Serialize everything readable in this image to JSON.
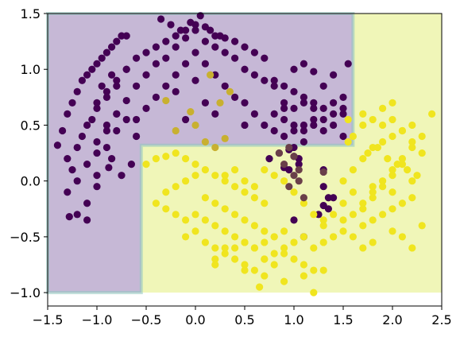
{
  "chart_data": {
    "type": "scatter",
    "title": "",
    "xlabel": "",
    "ylabel": "",
    "xlim": [
      -1.5,
      2.5
    ],
    "ylim": [
      -1.12,
      1.5
    ],
    "grid": false,
    "legend": "none",
    "xticks": [
      -1.5,
      -1.0,
      -0.5,
      0.0,
      0.5,
      1.0,
      1.5,
      2.0,
      2.5
    ],
    "xtick_labels": [
      "−1.5",
      "−1.0",
      "−0.5",
      "0.0",
      "0.5",
      "1.0",
      "1.5",
      "2.0",
      "2.5"
    ],
    "yticks": [
      -1.0,
      -0.5,
      0.0,
      0.5,
      1.0,
      1.5
    ],
    "ytick_labels": [
      "−1.0",
      "−0.5",
      "0.0",
      "0.5",
      "1.0",
      "1.5"
    ],
    "decision_regions": {
      "extent": {
        "x": [
          -1.5,
          2.5
        ],
        "y": [
          -1.0,
          1.5
        ]
      },
      "colors": {
        "class_0": "#c6b8d6",
        "class_1": "#f0f6b8"
      },
      "class_0_polygon": [
        [
          -1.5,
          1.5
        ],
        [
          1.6,
          1.5
        ],
        [
          1.6,
          0.32
        ],
        [
          -0.55,
          0.32
        ],
        [
          -0.55,
          -1.0
        ],
        [
          -1.5,
          -1.0
        ]
      ]
    },
    "series": [
      {
        "color": "#440154",
        "x": [
          -1.4,
          -1.35,
          -1.3,
          -1.25,
          -1.2,
          -1.15,
          -1.1,
          -1.05,
          -1.0,
          -0.95,
          -0.9,
          -0.85,
          -0.8,
          -0.75,
          -0.7,
          -1.3,
          -1.2,
          -1.1,
          -1.0,
          -0.9,
          -0.8,
          -0.7,
          -1.25,
          -1.15,
          -1.05,
          -0.95,
          -0.85,
          -1.3,
          -1.2,
          -1.1,
          -1.0,
          -0.9,
          -0.8,
          -1.2,
          -1.1,
          -1.0,
          -0.9,
          -1.1,
          -1.0,
          -1.28,
          -0.88,
          -1.0,
          -0.9,
          -0.8,
          -0.7,
          -0.6,
          -0.5,
          -0.4,
          -0.3,
          -0.2,
          -0.1,
          0.0,
          0.1,
          0.2,
          0.3,
          0.4,
          0.5,
          0.6,
          0.7,
          -0.8,
          -0.7,
          -0.6,
          -0.5,
          -0.4,
          -0.3,
          -0.2,
          -0.1,
          0.0,
          0.1,
          0.2,
          0.3,
          0.4,
          0.5,
          0.6,
          0.7,
          0.8,
          -0.6,
          -0.5,
          -0.4,
          -0.3,
          -0.2,
          -0.1,
          0.0,
          0.1,
          0.2,
          0.3,
          0.4,
          0.5,
          -0.35,
          -0.25,
          -0.15,
          -0.05,
          0.05,
          0.15,
          0.25,
          -0.2,
          0.0,
          0.2,
          -0.1,
          0.1,
          0.8,
          0.9,
          1.0,
          1.1,
          1.2,
          1.3,
          1.4,
          1.5,
          0.8,
          0.9,
          1.0,
          1.1,
          1.2,
          1.3,
          1.4,
          1.5,
          1.55,
          0.9,
          1.0,
          1.1,
          1.2,
          1.3,
          1.4,
          1.5,
          0.9,
          1.0,
          1.1,
          1.2,
          1.3,
          1.4,
          1.0,
          1.1,
          1.2,
          0.7,
          0.8,
          0.9,
          1.0,
          1.1,
          0.6,
          0.5,
          -0.9,
          -0.8,
          -0.7,
          -0.6,
          -1.0,
          -0.85,
          -0.65,
          -0.75,
          0.85,
          0.95,
          1.0,
          1.05,
          0.75,
          0.9,
          0.95,
          1.05,
          1.3,
          1.3,
          1.35,
          1.4,
          1.0,
          1.1,
          1.3,
          1.25,
          1.35,
          1.5
        ],
        "y": [
          0.32,
          0.45,
          0.6,
          0.7,
          0.8,
          0.9,
          0.95,
          1.0,
          1.05,
          1.1,
          1.15,
          1.2,
          1.25,
          1.3,
          1.3,
          0.2,
          0.3,
          0.5,
          0.65,
          0.75,
          0.85,
          1.0,
          0.1,
          0.4,
          0.55,
          0.85,
          0.95,
          -0.1,
          0.0,
          0.15,
          0.25,
          0.45,
          0.6,
          -0.3,
          -0.2,
          0.05,
          0.3,
          -0.35,
          -0.05,
          -0.32,
          0.12,
          0.7,
          0.8,
          0.9,
          1.0,
          1.1,
          1.15,
          1.2,
          1.25,
          1.3,
          1.35,
          1.4,
          1.38,
          1.3,
          1.28,
          1.25,
          1.2,
          1.15,
          1.1,
          0.6,
          0.72,
          0.85,
          0.95,
          1.05,
          1.1,
          1.2,
          1.28,
          1.35,
          1.25,
          1.2,
          1.15,
          1.1,
          1.0,
          0.95,
          0.9,
          0.85,
          0.55,
          0.65,
          0.75,
          0.85,
          0.95,
          1.05,
          1.15,
          1.05,
          0.95,
          0.85,
          0.75,
          0.7,
          1.45,
          1.4,
          1.35,
          1.42,
          1.48,
          1.35,
          1.3,
          0.8,
          0.9,
          0.6,
          0.55,
          0.7,
          0.9,
          0.85,
          0.8,
          0.75,
          0.7,
          0.65,
          0.7,
          0.75,
          0.6,
          0.55,
          0.5,
          0.45,
          0.5,
          0.55,
          0.6,
          0.65,
          1.05,
          0.4,
          0.45,
          0.5,
          0.55,
          0.45,
          0.5,
          0.4,
          0.7,
          0.65,
          0.7,
          0.65,
          0.85,
          0.95,
          1.0,
          1.05,
          0.98,
          0.5,
          0.45,
          0.65,
          0.3,
          0.35,
          0.6,
          0.5,
          0.5,
          0.45,
          0.55,
          0.4,
          0.35,
          0.2,
          0.15,
          0.05,
          0.25,
          0.28,
          0.22,
          0.2,
          0.2,
          0.12,
          0.1,
          0.15,
          0.1,
          -0.05,
          -0.15,
          -0.15,
          -0.35,
          -0.5,
          -0.22,
          -0.3,
          -0.25,
          0.6
        ]
      },
      {
        "color": "#f0e51f",
        "x": [
          -0.5,
          -0.4,
          -0.3,
          -0.2,
          -0.1,
          0.0,
          0.1,
          0.2,
          0.3,
          0.4,
          0.5,
          0.6,
          0.7,
          -0.3,
          -0.2,
          -0.1,
          0.0,
          0.1,
          0.2,
          0.3,
          0.4,
          0.5,
          0.6,
          0.7,
          0.8,
          -0.4,
          -0.3,
          -0.2,
          -0.1,
          0.0,
          0.1,
          0.2,
          0.3,
          0.4,
          0.5,
          0.6,
          0.7,
          0.8,
          0.9,
          -0.1,
          0.0,
          0.1,
          0.2,
          0.3,
          0.4,
          0.5,
          0.6,
          0.7,
          0.8,
          0.9,
          1.0,
          1.1,
          0.2,
          0.3,
          0.4,
          0.5,
          0.6,
          0.7,
          0.8,
          0.9,
          1.0,
          1.1,
          1.2,
          0.3,
          0.4,
          0.5,
          0.6,
          0.7,
          0.8,
          0.9,
          1.0,
          1.1,
          1.2,
          1.3,
          0.2,
          0.5,
          0.7,
          0.9,
          1.1,
          1.3,
          0.65,
          1.2,
          1.2,
          1.3,
          1.4,
          1.5,
          1.6,
          1.7,
          1.8,
          1.9,
          2.0,
          2.1,
          2.2,
          1.3,
          1.4,
          1.5,
          1.6,
          1.7,
          1.8,
          1.9,
          2.0,
          2.1,
          2.2,
          2.3,
          1.4,
          1.5,
          1.6,
          1.7,
          1.8,
          1.9,
          2.0,
          2.1,
          2.2,
          2.3,
          1.5,
          1.6,
          1.7,
          1.8,
          1.9,
          2.0,
          2.1,
          2.2,
          1.9,
          2.0,
          2.1,
          2.2,
          1.7,
          1.8,
          2.0,
          2.1,
          2.3,
          1.75,
          1.85,
          1.95,
          2.05,
          2.15,
          2.25,
          1.8,
          2.0,
          2.2,
          1.6,
          1.7,
          1.8,
          1.9,
          2.0,
          1.7,
          1.55,
          1.55,
          2.4
        ],
        "y": [
          0.15,
          0.2,
          0.22,
          0.25,
          0.2,
          0.15,
          0.1,
          0.05,
          0.0,
          -0.05,
          -0.1,
          -0.15,
          -0.2,
          -0.1,
          -0.05,
          0.0,
          0.05,
          -0.15,
          -0.2,
          -0.25,
          -0.3,
          -0.35,
          -0.4,
          -0.45,
          -0.5,
          -0.2,
          -0.25,
          -0.3,
          -0.35,
          -0.3,
          -0.35,
          -0.4,
          -0.45,
          -0.5,
          -0.55,
          -0.6,
          -0.55,
          -0.5,
          -0.45,
          -0.5,
          -0.45,
          -0.55,
          -0.6,
          -0.65,
          -0.6,
          -0.55,
          -0.6,
          -0.7,
          -0.65,
          -0.6,
          -0.55,
          -0.5,
          -0.7,
          -0.6,
          -0.7,
          -0.75,
          -0.8,
          -0.7,
          -0.75,
          -0.65,
          -0.7,
          -0.75,
          -0.8,
          0.05,
          0.1,
          0.0,
          -0.05,
          0.1,
          0.05,
          0.0,
          -0.1,
          -0.2,
          -0.3,
          -0.35,
          -0.75,
          -0.8,
          -0.85,
          -0.9,
          -0.85,
          -0.8,
          -0.95,
          -1.0,
          -0.6,
          -0.55,
          -0.5,
          -0.45,
          -0.5,
          -0.4,
          -0.35,
          -0.3,
          -0.25,
          -0.2,
          -0.15,
          -0.4,
          -0.3,
          -0.2,
          -0.1,
          -0.2,
          -0.1,
          0.0,
          0.1,
          0.2,
          0.0,
          0.25,
          -0.5,
          -0.35,
          -0.3,
          -0.25,
          -0.15,
          -0.05,
          0.05,
          0.15,
          0.3,
          0.4,
          0.0,
          0.1,
          0.2,
          0.3,
          0.35,
          0.4,
          0.45,
          0.5,
          0.5,
          0.55,
          0.45,
          0.35,
          -0.6,
          -0.55,
          -0.45,
          -0.5,
          -0.4,
          0.25,
          0.3,
          0.2,
          0.15,
          0.1,
          0.05,
          -0.05,
          -0.1,
          -0.6,
          0.4,
          0.5,
          0.55,
          0.65,
          0.7,
          0.6,
          0.55,
          0.35,
          0.6
        ]
      },
      {
        "color": "#c8b030",
        "x": [
          -0.3,
          -0.2,
          0.0,
          0.1,
          0.2,
          0.3,
          0.25,
          0.35,
          -0.05,
          0.15
        ],
        "y": [
          0.72,
          0.45,
          0.5,
          0.35,
          0.3,
          0.38,
          0.7,
          0.8,
          0.62,
          0.95
        ]
      },
      {
        "color": "#6a3f4a",
        "x": [
          0.9,
          1.0,
          1.05,
          0.95,
          1.1,
          1.0,
          0.85,
          0.95,
          1.05,
          1.3
        ],
        "y": [
          0.15,
          0.05,
          0.0,
          -0.05,
          -0.15,
          0.22,
          0.25,
          0.3,
          0.1,
          0.08
        ]
      }
    ]
  }
}
